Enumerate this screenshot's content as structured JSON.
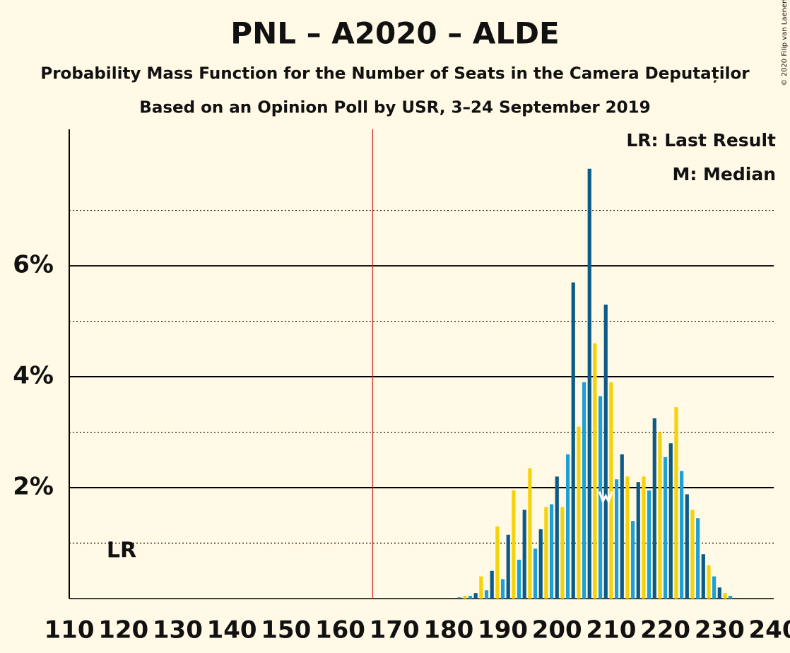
{
  "chart_data": {
    "type": "bar",
    "title": "PNL – A2020 – ALDE",
    "subtitle": "Probability Mass Function for the Number of Seats in the Camera Deputaților",
    "subtitle2": "Based on an Opinion Poll by USR, 3–24 September 2019",
    "copyright": "© 2020 Filip van Laenen",
    "legend_lr": "LR: Last Result",
    "legend_m": "M: Median",
    "lr_label": "LR",
    "last_result": 166,
    "median": 209,
    "median_value": 1.75,
    "palette": [
      "#0c5b87",
      "#f5d20a",
      "#1e9fd8"
    ],
    "x": [
      110,
      111,
      112,
      113,
      114,
      115,
      116,
      117,
      118,
      119,
      120,
      121,
      122,
      123,
      124,
      125,
      126,
      127,
      128,
      129,
      130,
      131,
      132,
      133,
      134,
      135,
      136,
      137,
      138,
      139,
      140,
      141,
      142,
      143,
      144,
      145,
      146,
      147,
      148,
      149,
      150,
      151,
      152,
      153,
      154,
      155,
      156,
      157,
      158,
      159,
      160,
      161,
      162,
      163,
      164,
      165,
      166,
      167,
      168,
      169,
      170,
      171,
      172,
      173,
      174,
      175,
      176,
      177,
      178,
      179,
      180,
      181,
      182,
      183,
      184,
      185,
      186,
      187,
      188,
      189,
      190,
      191,
      192,
      193,
      194,
      195,
      196,
      197,
      198,
      199,
      200,
      201,
      202,
      203,
      204,
      205,
      206,
      207,
      208,
      209,
      210,
      211,
      212,
      213,
      214,
      215,
      216,
      217,
      218,
      219,
      220,
      221,
      222,
      223,
      224,
      225,
      226,
      227,
      228,
      229,
      230,
      231,
      232,
      233,
      234,
      235,
      236,
      237,
      238,
      239,
      240
    ],
    "values": [
      0,
      0,
      0,
      0,
      0,
      0,
      0,
      0,
      0,
      0,
      0,
      0,
      0,
      0,
      0,
      0,
      0,
      0,
      0,
      0,
      0,
      0,
      0,
      0,
      0,
      0,
      0,
      0,
      0,
      0,
      0,
      0,
      0,
      0,
      0,
      0,
      0,
      0,
      0,
      0,
      0,
      0,
      0,
      0,
      0,
      0,
      0,
      0,
      0,
      0,
      0,
      0,
      0,
      0,
      0,
      0,
      0,
      0,
      0,
      0,
      0,
      0,
      0,
      0,
      0,
      0,
      0,
      0,
      0,
      0,
      0,
      0,
      0.02,
      0.05,
      0.05,
      0.1,
      0.4,
      0.15,
      0.5,
      1.3,
      0.35,
      1.15,
      1.95,
      0.7,
      1.6,
      2.35,
      0.9,
      1.25,
      1.65,
      1.7,
      2.2,
      1.65,
      2.6,
      5.7,
      3.1,
      3.9,
      7.75,
      4.6,
      3.65,
      5.3,
      3.9,
      2.15,
      2.6,
      2.2,
      1.4,
      2.1,
      2.2,
      1.95,
      3.25,
      3.0,
      2.55,
      2.8,
      3.45,
      2.3,
      1.88,
      1.6,
      1.45,
      0.8,
      0.6,
      0.4,
      0.2,
      0.1,
      0.05,
      0,
      0,
      0,
      0,
      0,
      0,
      0,
      0
    ],
    "xlim": [
      110,
      240
    ],
    "xticks": [
      110,
      120,
      130,
      140,
      150,
      160,
      170,
      180,
      190,
      200,
      210,
      220,
      230,
      240
    ],
    "ylim": [
      0,
      8.46
    ],
    "yticks": [
      {
        "value": 2,
        "label": "2%"
      },
      {
        "value": 4,
        "label": "4%"
      },
      {
        "value": 6,
        "label": "6%"
      }
    ],
    "minor_yticks": [
      1,
      3,
      5,
      7
    ],
    "grid": true
  }
}
